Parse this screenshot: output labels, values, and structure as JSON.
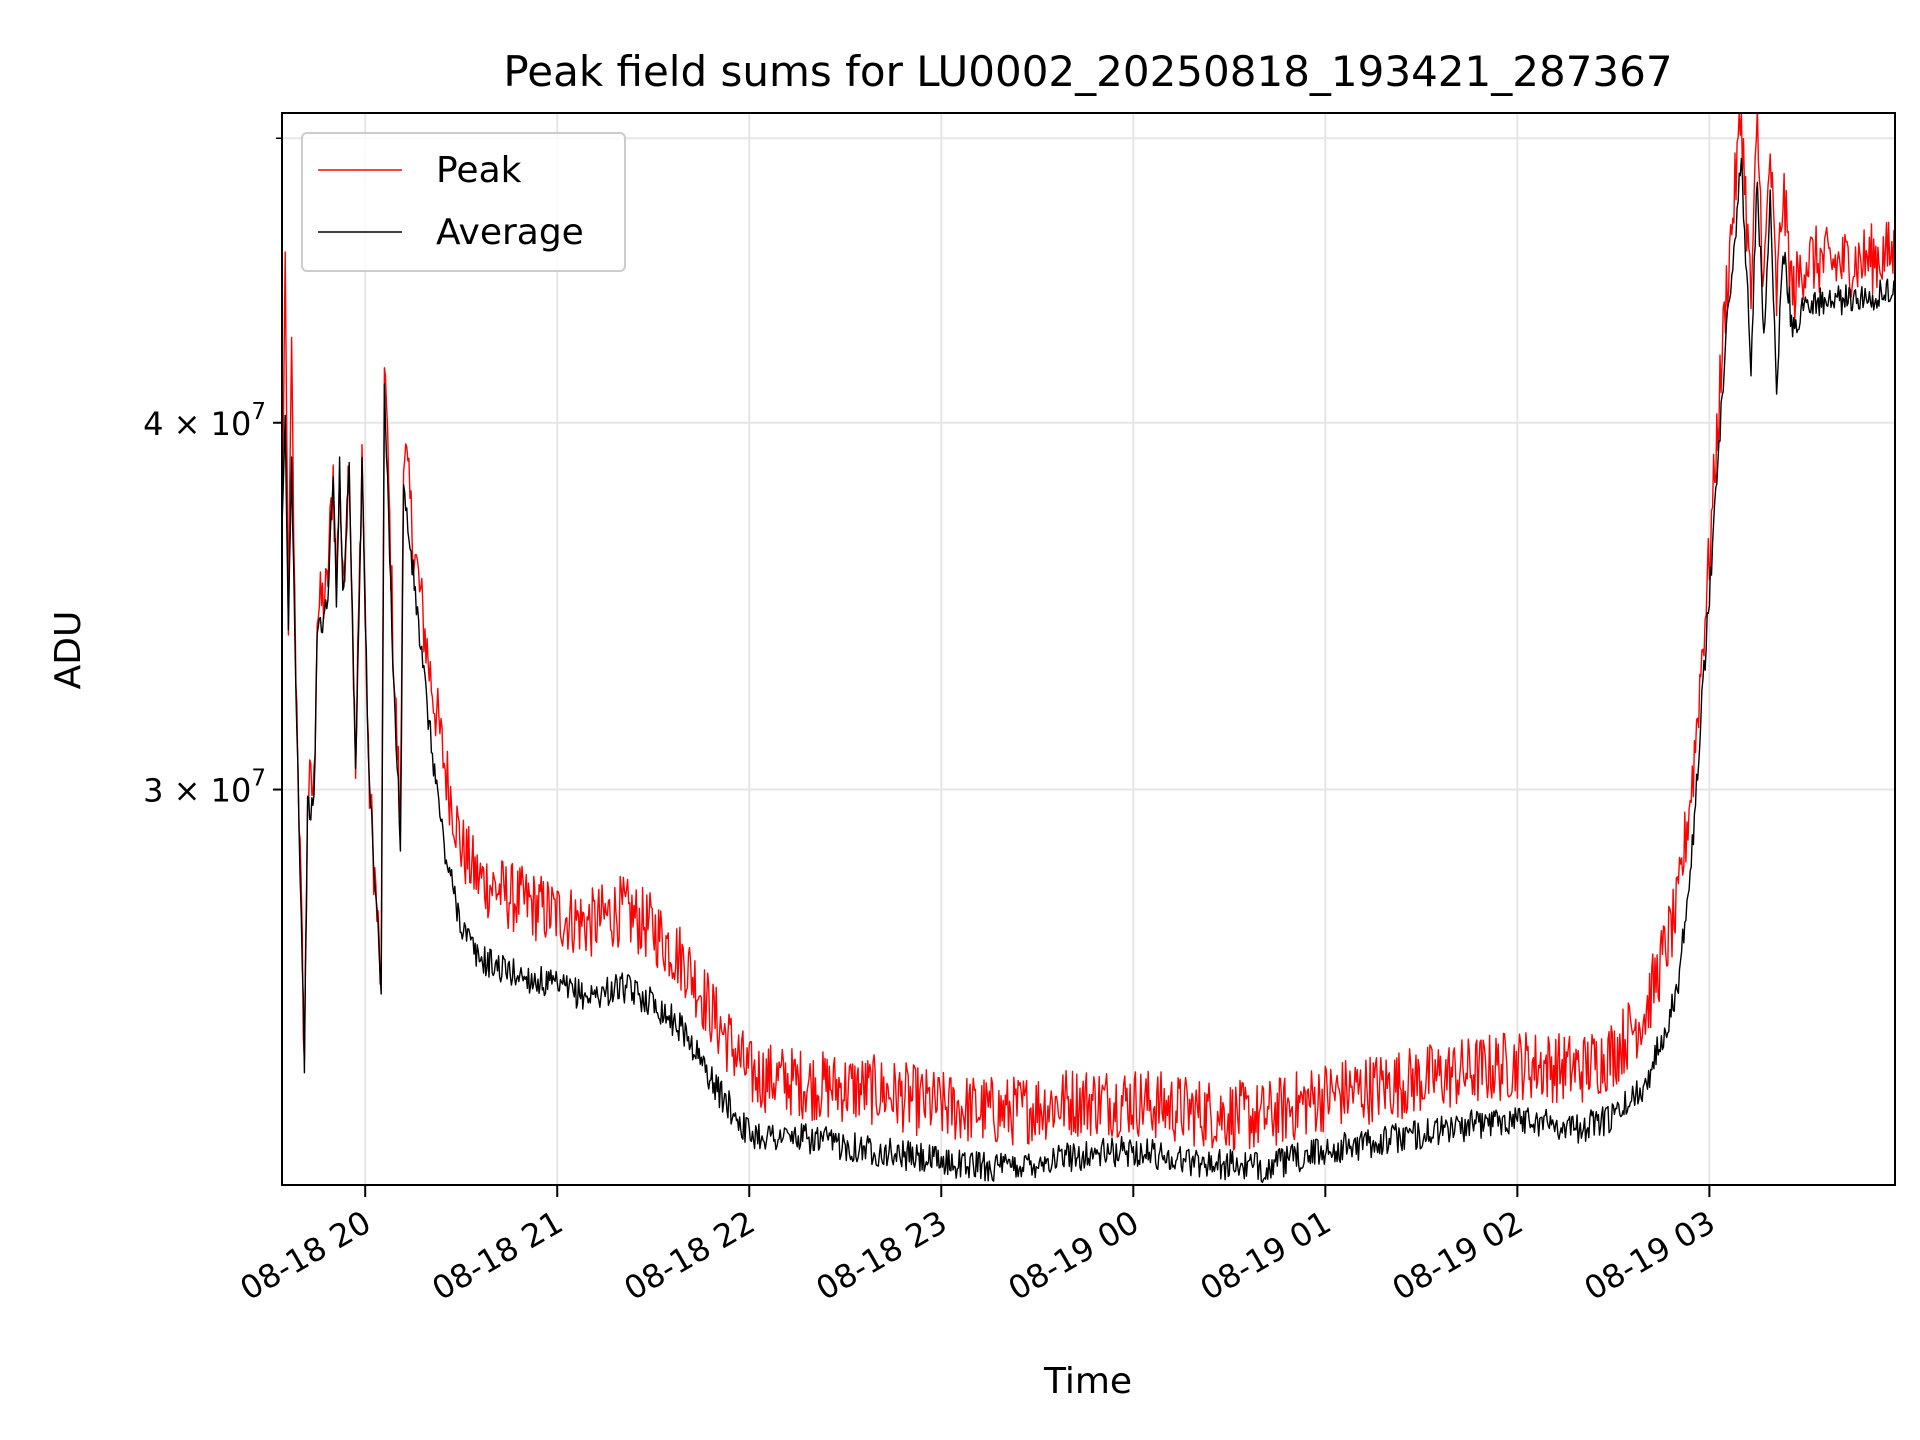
{
  "chart_data": {
    "type": "line",
    "title": "Peak field sums for LU0002_20250818_193421_287367",
    "xlabel": "Time",
    "ylabel": "ADU",
    "x_range": [
      "2025-08-18 19:34",
      "2025-08-19 03:58"
    ],
    "ylim": [
      22000000,
      51000000
    ],
    "yscale": "log",
    "grid": true,
    "legend_position": "top-left",
    "x_ticks": [
      "08-18 20",
      "08-18 21",
      "08-18 22",
      "08-18 23",
      "08-19 00",
      "08-19 01",
      "08-19 02",
      "08-19 03"
    ],
    "y_tick_labels": [
      {
        "value": 30000000,
        "label_base": "3 × 10",
        "label_exp": "7"
      },
      {
        "value": 40000000,
        "label_base": "4 × 10",
        "label_exp": "7"
      }
    ],
    "y_minor_unlabeled": [
      50000000
    ],
    "series": [
      {
        "name": "Peak",
        "color": "#ff0000",
        "points": [
          [
            "2025-08-18 19:34",
            37000000
          ],
          [
            "2025-08-18 19:35",
            44500000
          ],
          [
            "2025-08-18 19:36",
            34500000
          ],
          [
            "2025-08-18 19:37",
            42000000
          ],
          [
            "2025-08-18 19:38",
            34500000
          ],
          [
            "2025-08-18 19:41",
            24300000
          ],
          [
            "2025-08-18 19:42",
            30000000
          ],
          [
            "2025-08-18 19:44",
            30000000
          ],
          [
            "2025-08-18 19:45",
            34500000
          ],
          [
            "2025-08-18 19:48",
            35000000
          ],
          [
            "2025-08-18 19:50",
            38500000
          ],
          [
            "2025-08-18 19:51",
            35000000
          ],
          [
            "2025-08-18 19:52",
            38800000
          ],
          [
            "2025-08-18 19:53",
            35000000
          ],
          [
            "2025-08-18 19:55",
            39000000
          ],
          [
            "2025-08-18 19:57",
            30300000
          ],
          [
            "2025-08-18 19:59",
            39200000
          ],
          [
            "2025-08-18 20:01",
            30500000
          ],
          [
            "2025-08-18 20:05",
            25700000
          ],
          [
            "2025-08-18 20:06",
            42500000
          ],
          [
            "2025-08-18 20:09",
            33000000
          ],
          [
            "2025-08-18 20:11",
            29200000
          ],
          [
            "2025-08-18 20:12",
            39600000
          ],
          [
            "2025-08-18 20:15",
            36500000
          ],
          [
            "2025-08-18 20:20",
            33000000
          ],
          [
            "2025-08-18 20:25",
            30500000
          ],
          [
            "2025-08-18 20:30",
            28700000
          ],
          [
            "2025-08-18 20:35",
            28000000
          ],
          [
            "2025-08-18 20:45",
            27600000
          ],
          [
            "2025-08-18 21:00",
            27200000
          ],
          [
            "2025-08-18 21:10",
            27000000
          ],
          [
            "2025-08-18 21:20",
            27300000
          ],
          [
            "2025-08-18 21:30",
            26900000
          ],
          [
            "2025-08-18 21:40",
            26200000
          ],
          [
            "2025-08-18 21:50",
            25000000
          ],
          [
            "2025-08-18 22:00",
            24000000
          ],
          [
            "2025-08-18 22:20",
            23800000
          ],
          [
            "2025-08-18 22:40",
            23700000
          ],
          [
            "2025-08-18 23:00",
            23400000
          ],
          [
            "2025-08-18 23:20",
            23300000
          ],
          [
            "2025-08-18 23:40",
            23500000
          ],
          [
            "2025-08-19 00:00",
            23500000
          ],
          [
            "2025-08-19 00:20",
            23300000
          ],
          [
            "2025-08-19 00:40",
            23200000
          ],
          [
            "2025-08-19 01:00",
            23600000
          ],
          [
            "2025-08-19 01:20",
            23800000
          ],
          [
            "2025-08-19 01:40",
            24000000
          ],
          [
            "2025-08-19 02:00",
            24200000
          ],
          [
            "2025-08-19 02:20",
            24100000
          ],
          [
            "2025-08-19 02:30",
            24400000
          ],
          [
            "2025-08-19 02:40",
            25200000
          ],
          [
            "2025-08-19 02:50",
            27300000
          ],
          [
            "2025-08-19 02:55",
            30500000
          ],
          [
            "2025-08-19 03:00",
            36000000
          ],
          [
            "2025-08-19 03:05",
            44000000
          ],
          [
            "2025-08-19 03:10",
            51000000
          ],
          [
            "2025-08-19 03:13",
            44000000
          ],
          [
            "2025-08-19 03:15",
            50500000
          ],
          [
            "2025-08-19 03:17",
            44500000
          ],
          [
            "2025-08-19 03:19",
            49500000
          ],
          [
            "2025-08-19 03:21",
            44000000
          ],
          [
            "2025-08-19 03:23",
            48000000
          ],
          [
            "2025-08-19 03:26",
            44200000
          ],
          [
            "2025-08-19 03:30",
            45500000
          ],
          [
            "2025-08-19 03:40",
            45300000
          ],
          [
            "2025-08-19 03:50",
            45500000
          ],
          [
            "2025-08-19 03:58",
            45700000
          ]
        ]
      },
      {
        "name": "Average",
        "color": "#000000",
        "points": [
          [
            "2025-08-18 19:34",
            36500000
          ],
          [
            "2025-08-18 19:35",
            40000000
          ],
          [
            "2025-08-18 19:36",
            34000000
          ],
          [
            "2025-08-18 19:37",
            39000000
          ],
          [
            "2025-08-18 19:38",
            34000000
          ],
          [
            "2025-08-18 19:41",
            24300000
          ],
          [
            "2025-08-18 19:42",
            29500000
          ],
          [
            "2025-08-18 19:44",
            29600000
          ],
          [
            "2025-08-18 19:45",
            34000000
          ],
          [
            "2025-08-18 19:48",
            34500000
          ],
          [
            "2025-08-18 19:50",
            38200000
          ],
          [
            "2025-08-18 19:51",
            35000000
          ],
          [
            "2025-08-18 19:52",
            38500000
          ],
          [
            "2025-08-18 19:53",
            35000000
          ],
          [
            "2025-08-18 19:55",
            38700000
          ],
          [
            "2025-08-18 19:57",
            30500000
          ],
          [
            "2025-08-18 19:59",
            38800000
          ],
          [
            "2025-08-18 20:01",
            30600000
          ],
          [
            "2025-08-18 20:05",
            25700000
          ],
          [
            "2025-08-18 20:06",
            41000000
          ],
          [
            "2025-08-18 20:09",
            32500000
          ],
          [
            "2025-08-18 20:11",
            28800000
          ],
          [
            "2025-08-18 20:12",
            38000000
          ],
          [
            "2025-08-18 20:15",
            35500000
          ],
          [
            "2025-08-18 20:20",
            31500000
          ],
          [
            "2025-08-18 20:25",
            28500000
          ],
          [
            "2025-08-18 20:30",
            27000000
          ],
          [
            "2025-08-18 20:35",
            26300000
          ],
          [
            "2025-08-18 20:45",
            26000000
          ],
          [
            "2025-08-18 21:00",
            25700000
          ],
          [
            "2025-08-18 21:10",
            25500000
          ],
          [
            "2025-08-18 21:20",
            25700000
          ],
          [
            "2025-08-18 21:30",
            25400000
          ],
          [
            "2025-08-18 21:40",
            24800000
          ],
          [
            "2025-08-18 21:50",
            23700000
          ],
          [
            "2025-08-18 22:00",
            22900000
          ],
          [
            "2025-08-18 22:20",
            22800000
          ],
          [
            "2025-08-18 22:40",
            22600000
          ],
          [
            "2025-08-18 23:00",
            22400000
          ],
          [
            "2025-08-18 23:20",
            22300000
          ],
          [
            "2025-08-18 23:40",
            22500000
          ],
          [
            "2025-08-19 00:00",
            22600000
          ],
          [
            "2025-08-19 00:20",
            22400000
          ],
          [
            "2025-08-19 00:40",
            22300000
          ],
          [
            "2025-08-19 01:00",
            22600000
          ],
          [
            "2025-08-19 01:20",
            22800000
          ],
          [
            "2025-08-19 01:40",
            23000000
          ],
          [
            "2025-08-19 02:00",
            23200000
          ],
          [
            "2025-08-19 02:20",
            23000000
          ],
          [
            "2025-08-19 02:30",
            23200000
          ],
          [
            "2025-08-19 02:40",
            23800000
          ],
          [
            "2025-08-19 02:50",
            25600000
          ],
          [
            "2025-08-19 02:55",
            29000000
          ],
          [
            "2025-08-19 03:00",
            35000000
          ],
          [
            "2025-08-19 03:05",
            42500000
          ],
          [
            "2025-08-19 03:10",
            49000000
          ],
          [
            "2025-08-19 03:13",
            42000000
          ],
          [
            "2025-08-19 03:15",
            48500000
          ],
          [
            "2025-08-19 03:17",
            42500000
          ],
          [
            "2025-08-19 03:19",
            47500000
          ],
          [
            "2025-08-19 03:21",
            41000000
          ],
          [
            "2025-08-19 03:23",
            46000000
          ],
          [
            "2025-08-19 03:26",
            43000000
          ],
          [
            "2025-08-19 03:30",
            44000000
          ],
          [
            "2025-08-19 03:40",
            44000000
          ],
          [
            "2025-08-19 03:50",
            44200000
          ],
          [
            "2025-08-19 03:58",
            44300000
          ]
        ]
      }
    ]
  }
}
